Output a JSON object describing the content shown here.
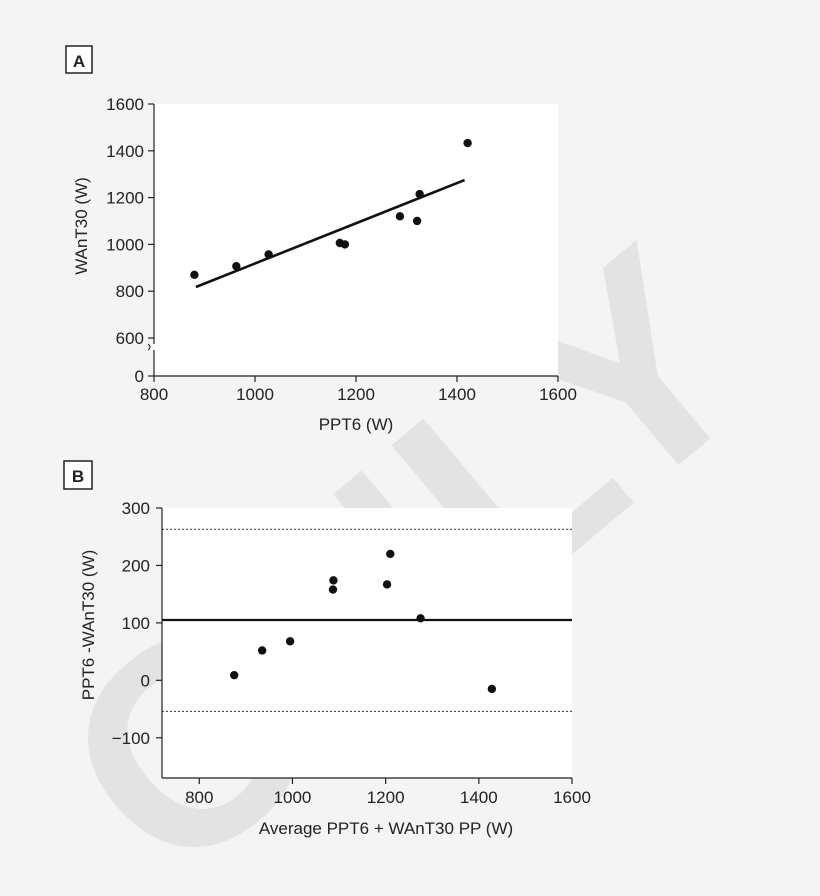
{
  "watermark": {
    "text": "ONLY",
    "color": "#e2e2e2"
  },
  "chart_data": [
    {
      "panel": "A",
      "type": "scatter",
      "xlabel": "PPT6 (W)",
      "ylabel": "WAnT30 (W)",
      "xlim": [
        800,
        1600
      ],
      "ylim": [
        0,
        1600
      ],
      "xticks": [
        "800",
        "1000",
        "1200",
        "1400",
        "1600"
      ],
      "yticks": [
        "0",
        "600",
        "800",
        "1000",
        "1200",
        "1400",
        "1600"
      ],
      "axis_break": "between 0 and 600",
      "points": [
        {
          "x": 880,
          "y": 870
        },
        {
          "x": 963,
          "y": 907
        },
        {
          "x": 1027,
          "y": 957
        },
        {
          "x": 1168,
          "y": 1006
        },
        {
          "x": 1178,
          "y": 1000
        },
        {
          "x": 1287,
          "y": 1120
        },
        {
          "x": 1321,
          "y": 1100
        },
        {
          "x": 1326,
          "y": 1215
        },
        {
          "x": 1421,
          "y": 1433
        }
      ],
      "regression_line": {
        "x1": 883,
        "y1": 818,
        "x2": 1415,
        "y2": 1275
      }
    },
    {
      "panel": "B",
      "type": "scatter",
      "xlabel": "Average  PPT6 + WAnT30 PP (W)",
      "ylabel": "PPT6 -WAnT30 (W)",
      "xlim": [
        720,
        1600
      ],
      "ylim": [
        -170,
        300
      ],
      "xticks": [
        "800",
        "1000",
        "1200",
        "1400",
        "1600"
      ],
      "yticks": [
        "−100",
        "0",
        "100",
        "200",
        "300"
      ],
      "points": [
        {
          "x": 875,
          "y": 9
        },
        {
          "x": 935,
          "y": 52
        },
        {
          "x": 995,
          "y": 68
        },
        {
          "x": 1087,
          "y": 158
        },
        {
          "x": 1088,
          "y": 174
        },
        {
          "x": 1203,
          "y": 167
        },
        {
          "x": 1210,
          "y": 220
        },
        {
          "x": 1275,
          "y": 108
        },
        {
          "x": 1428,
          "y": -15
        }
      ],
      "mean_line": 105,
      "upper_limit": 263,
      "lower_limit": -54
    }
  ]
}
